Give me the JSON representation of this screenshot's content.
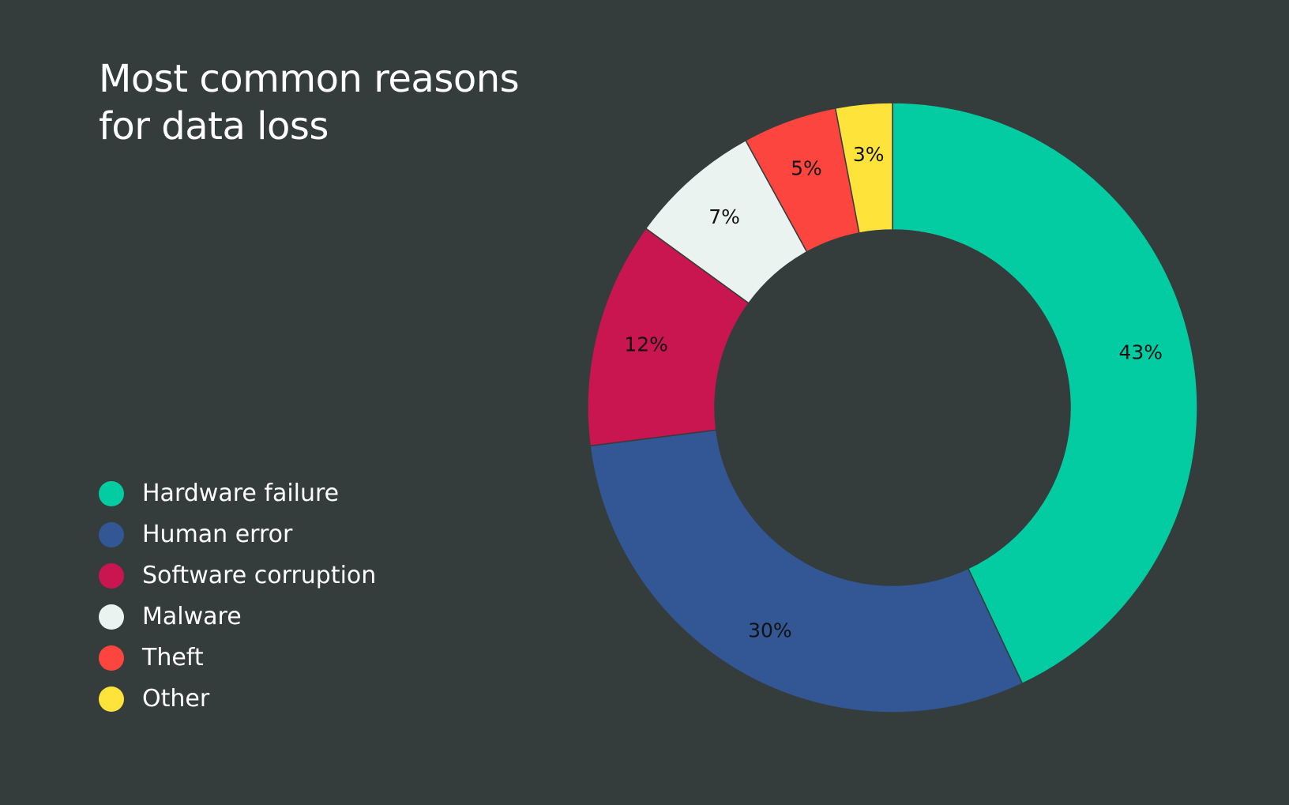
{
  "title_line1": "Most common reasons",
  "title_line2": "for data loss",
  "background": "#353d3c",
  "chart_data": {
    "type": "pie",
    "variant": "donut",
    "title": "Most common reasons for data loss",
    "legend_position": "bottom-left",
    "slices": [
      {
        "name": "Hardware failure",
        "value": 43,
        "label": "43%",
        "color": "#03cca3"
      },
      {
        "name": "Human error",
        "value": 30,
        "label": "30%",
        "color": "#335695"
      },
      {
        "name": "Software corruption",
        "value": 12,
        "label": "12%",
        "color": "#c91550"
      },
      {
        "name": "Malware",
        "value": 7,
        "label": "7%",
        "color": "#ebf3f1"
      },
      {
        "name": "Theft",
        "value": 5,
        "label": "5%",
        "color": "#fd453f"
      },
      {
        "name": "Other",
        "value": 3,
        "label": "3%",
        "color": "#fde33a"
      }
    ]
  }
}
